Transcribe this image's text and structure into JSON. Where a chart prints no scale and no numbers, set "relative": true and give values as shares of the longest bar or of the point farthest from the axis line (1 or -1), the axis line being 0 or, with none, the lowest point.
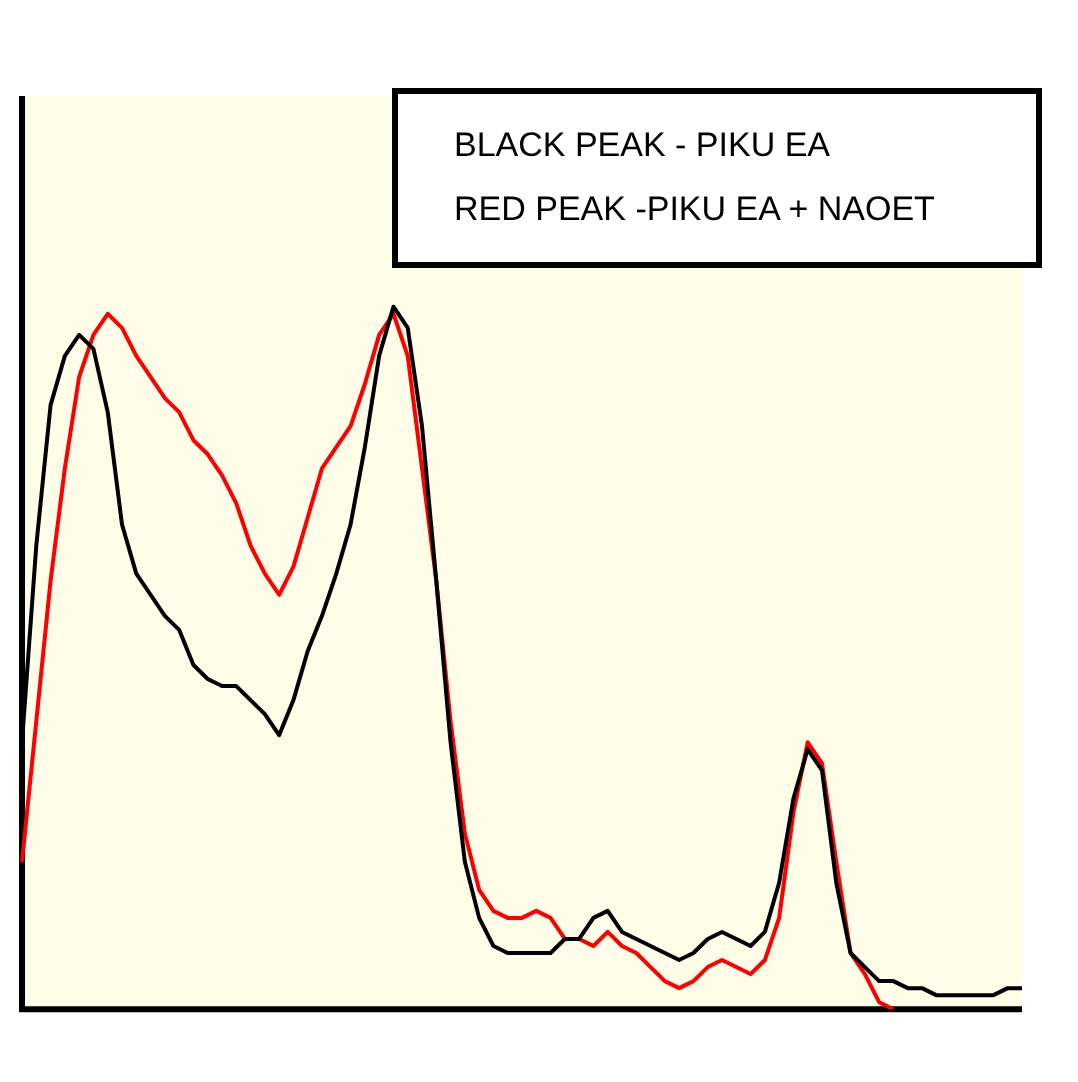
{
  "chart_data": {
    "type": "line",
    "relative": true,
    "grid": false,
    "legend": false,
    "categories": [
      null,
      null,
      null,
      null,
      null,
      null,
      null,
      null,
      null,
      null,
      null,
      null,
      null,
      null,
      null,
      null,
      null,
      null,
      null,
      null,
      null,
      null,
      null,
      null,
      null,
      null,
      null,
      null,
      null,
      null,
      null,
      null,
      null,
      null,
      null,
      null,
      null,
      null,
      null,
      null,
      null,
      null,
      null,
      null,
      null,
      null,
      null,
      null,
      null,
      null,
      null,
      null,
      null,
      null,
      null,
      null,
      null,
      null,
      null,
      null,
      null,
      null,
      null,
      null,
      null,
      null,
      null,
      null,
      null,
      null,
      null
    ],
    "annotations": [
      "BLACK PEAK - PIKU EA",
      "RED PEAK -PIKU EA + NAOET"
    ],
    "series": [
      {
        "color": "#000000",
        "values": [
          0.38,
          0.66,
          0.86,
          0.93,
          0.96,
          0.94,
          0.85,
          0.69,
          0.62,
          0.59,
          0.56,
          0.54,
          0.49,
          0.47,
          0.46,
          0.46,
          0.44,
          0.42,
          0.39,
          0.44,
          0.51,
          0.56,
          0.62,
          0.69,
          0.8,
          0.93,
          1,
          0.97,
          0.83,
          0.61,
          0.38,
          0.21,
          0.13,
          0.09,
          0.08,
          0.08,
          0.08,
          0.08,
          0.1,
          0.1,
          0.13,
          0.14,
          0.11,
          0.1,
          0.09,
          0.08,
          0.07,
          0.08,
          0.1,
          0.11,
          0.1,
          0.09,
          0.11,
          0.18,
          0.3,
          0.37,
          0.34,
          0.18,
          0.08,
          0.06,
          0.04,
          0.04,
          0.03,
          0.03,
          0.02,
          0.02,
          0.02,
          0.02,
          0.02,
          0.03,
          0.03
        ]
      },
      {
        "color": "#ff0000",
        "values": [
          0.21,
          0.41,
          0.61,
          0.77,
          0.9,
          0.96,
          0.99,
          0.97,
          0.93,
          0.9,
          0.87,
          0.85,
          0.81,
          0.79,
          0.76,
          0.72,
          0.66,
          0.62,
          0.59,
          0.63,
          0.7,
          0.77,
          0.8,
          0.83,
          0.89,
          0.96,
          0.99,
          0.93,
          0.77,
          0.61,
          0.41,
          0.25,
          0.17,
          0.14,
          0.13,
          0.13,
          0.14,
          0.13,
          0.1,
          0.1,
          0.09,
          0.11,
          0.09,
          0.08,
          0.06,
          0.04,
          0.03,
          0.04,
          0.06,
          0.07,
          0.06,
          0.05,
          0.07,
          0.13,
          0.28,
          0.38,
          0.35,
          0.21,
          0.08,
          0.05,
          0.01,
          0,
          null,
          null,
          null,
          null,
          null,
          null,
          null,
          null,
          null
        ]
      }
    ]
  }
}
